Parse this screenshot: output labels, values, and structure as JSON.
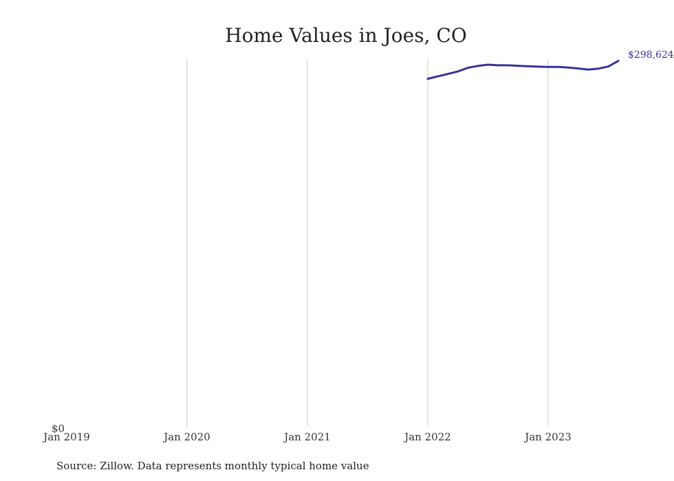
{
  "chart_data": {
    "type": "line",
    "title": "Home Values in Joes, CO",
    "xlabel": "",
    "ylabel": "",
    "x_ticks": [
      "Jan 2019",
      "Jan 2020",
      "Jan 2021",
      "Jan 2022",
      "Jan 2023"
    ],
    "y_tick_label": "$0",
    "ylim": [
      0,
      300000
    ],
    "grid": "vertical",
    "line_color": "#33339a",
    "series": [
      {
        "x": [
          "2022-01",
          "2022-02",
          "2022-03",
          "2022-04",
          "2022-05",
          "2022-06",
          "2022-07",
          "2022-08",
          "2022-09",
          "2022-10",
          "2022-11",
          "2022-12",
          "2023-01",
          "2023-02",
          "2023-03",
          "2023-04",
          "2023-05",
          "2023-06",
          "2023-07",
          "2023-08"
        ],
        "values": [
          284000,
          286000,
          288000,
          290000,
          293000,
          294500,
          295500,
          295000,
          295000,
          294600,
          294200,
          293900,
          293700,
          293700,
          293200,
          292400,
          291500,
          292300,
          294000,
          298624
        ]
      }
    ],
    "end_label": "$298,624"
  },
  "footer": {
    "source": "Source: Zillow. Data represents monthly typical home value"
  }
}
